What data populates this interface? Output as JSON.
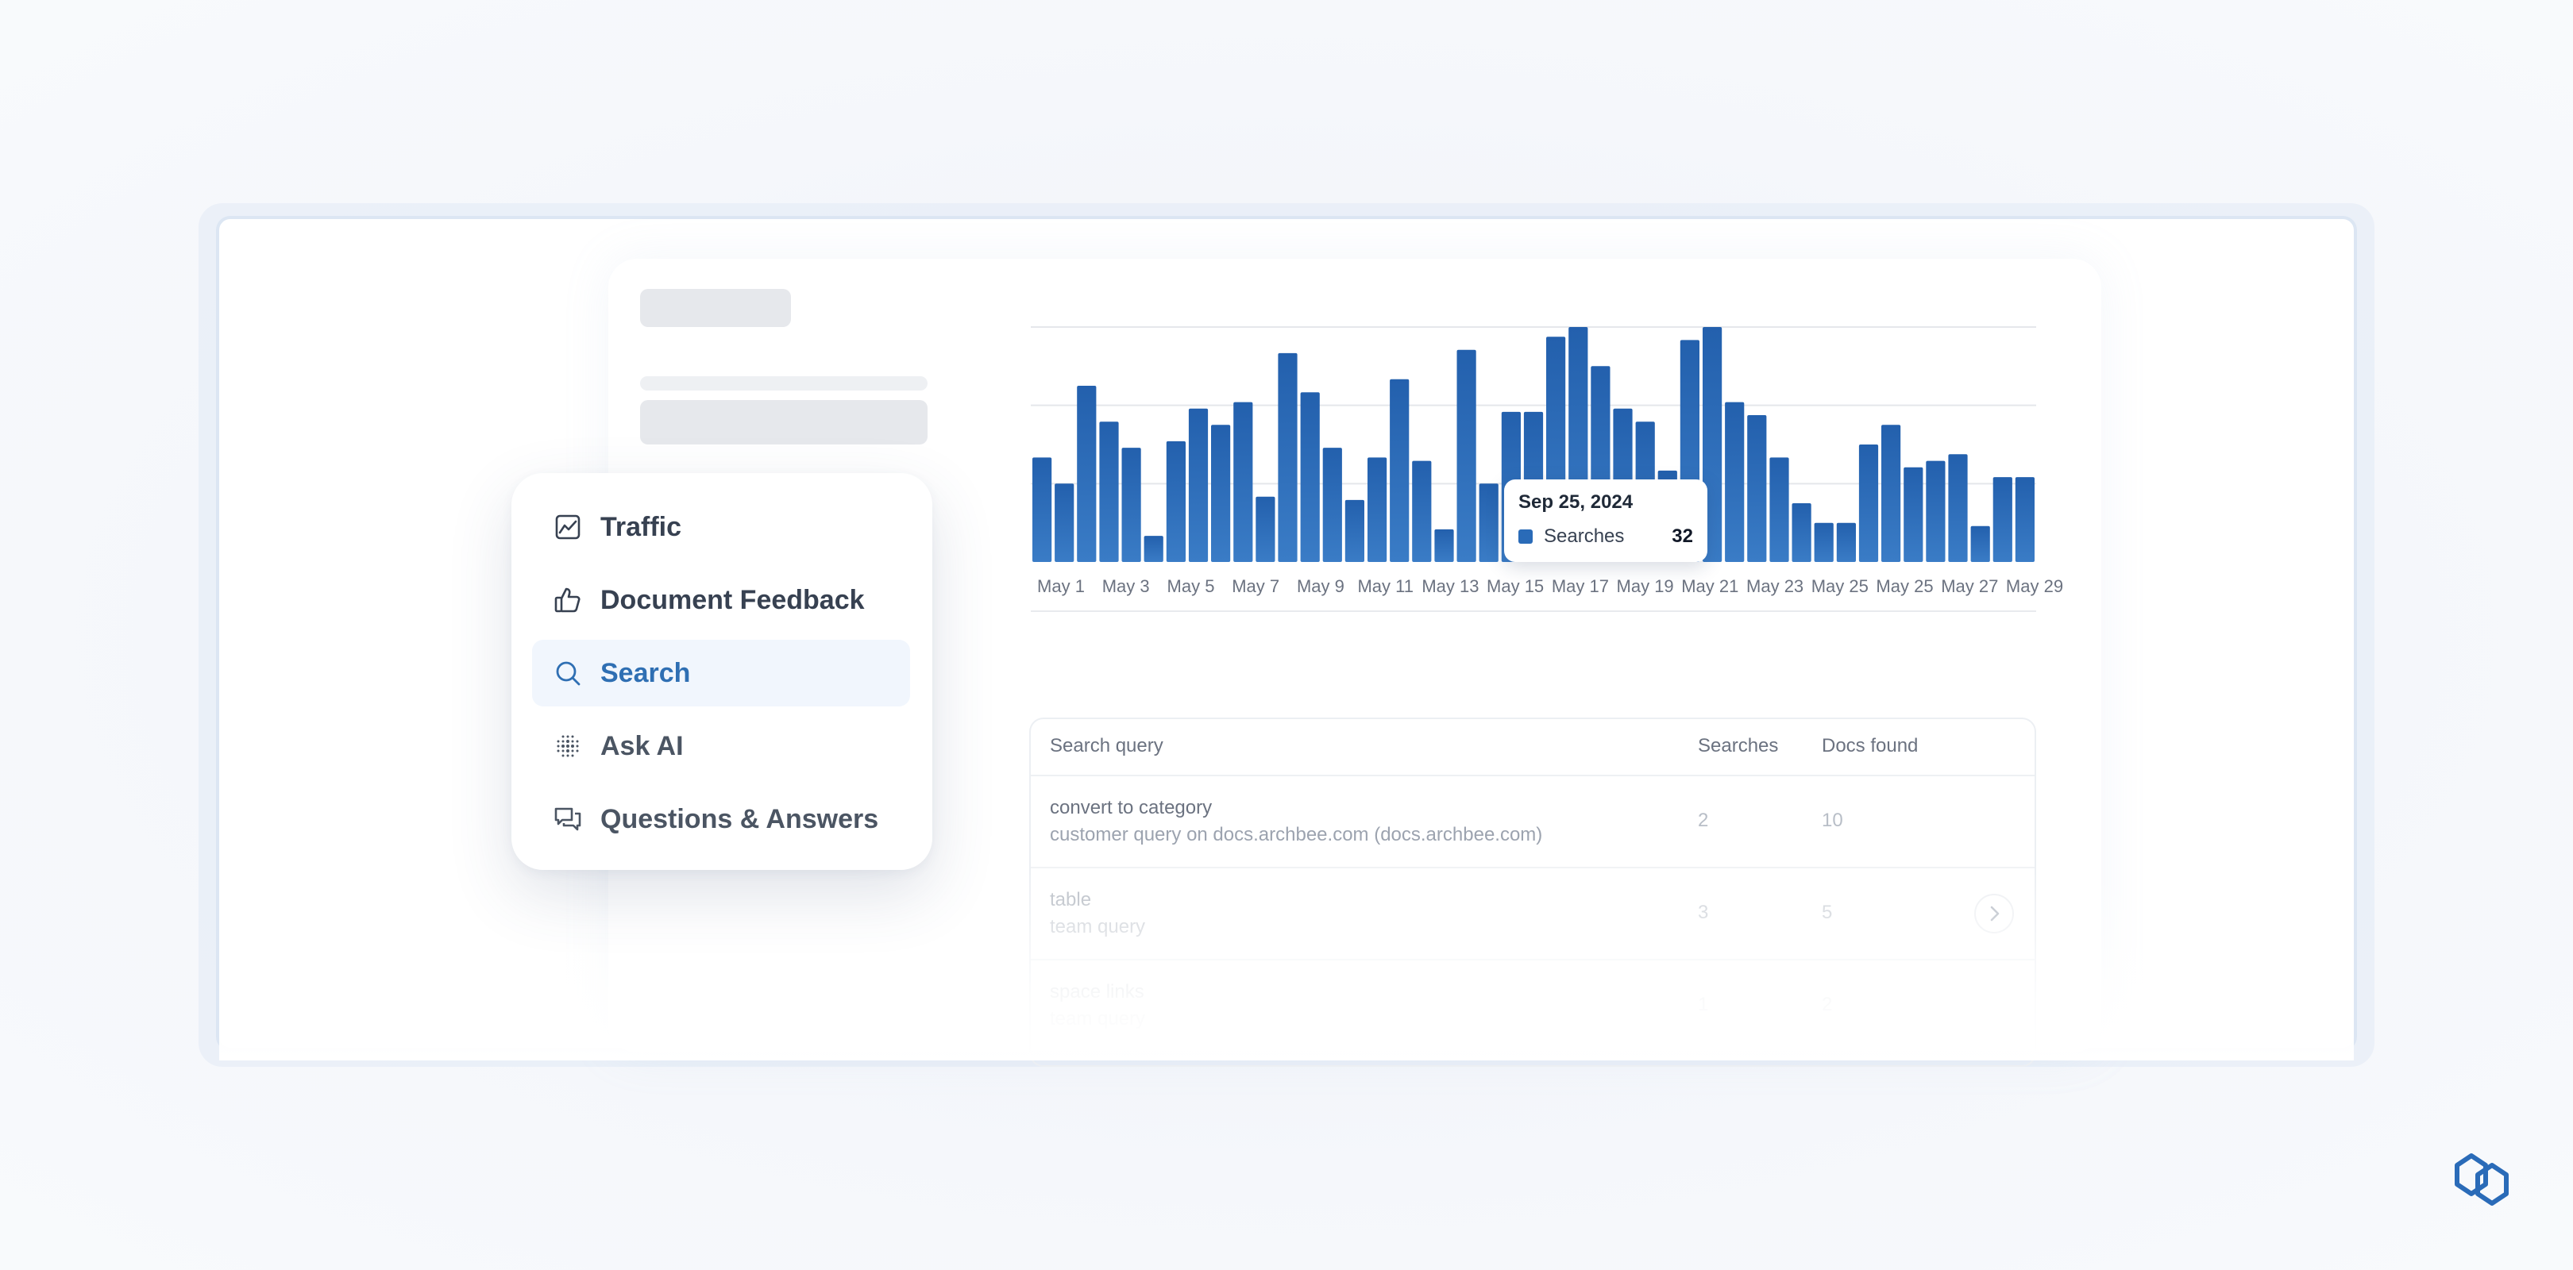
{
  "colors": {
    "accent": "#2a6bb8",
    "bar": "#2a6bb8",
    "active_bg": "#f1f6fd"
  },
  "menu": {
    "items": [
      {
        "label": "Traffic",
        "icon": "chart-line-icon",
        "active": false
      },
      {
        "label": "Document Feedback",
        "icon": "thumbs-up-icon",
        "active": false
      },
      {
        "label": "Search",
        "icon": "search-icon",
        "active": true
      },
      {
        "label": "Ask AI",
        "icon": "ai-dots-icon",
        "active": false
      },
      {
        "label": "Questions & Answers",
        "icon": "chat-bubbles-icon",
        "active": false
      }
    ]
  },
  "tooltip": {
    "date": "Sep 25, 2024",
    "series": "Searches",
    "value": "32"
  },
  "chart_data": {
    "type": "bar",
    "series": [
      {
        "name": "Searches",
        "values": [
          32,
          24,
          54,
          43,
          35,
          8,
          37,
          47,
          42,
          49,
          20,
          64,
          52,
          35,
          19,
          32,
          56,
          31,
          10,
          65,
          24,
          46,
          46,
          69,
          72,
          60,
          47,
          43,
          28,
          68,
          72,
          49,
          45,
          32,
          18,
          12,
          12,
          36,
          42,
          29,
          31,
          33,
          11,
          26,
          26
        ]
      }
    ],
    "x_tick_labels": [
      "May 1",
      "May 3",
      "May 5",
      "May 7",
      "May 9",
      "May 11",
      "May 13",
      "May 15",
      "May 17",
      "May 19",
      "May 21",
      "May 23",
      "May 25",
      "May 25",
      "May 27",
      "May 29"
    ],
    "ylim": [
      0,
      72
    ],
    "grid": true
  },
  "table": {
    "headers": {
      "query": "Search query",
      "searches": "Searches",
      "docs": "Docs found"
    },
    "rows": [
      {
        "title": "convert to category",
        "sub": "customer query on docs.archbee.com (docs.archbee.com)",
        "searches": "2",
        "docs": "10"
      },
      {
        "title": "table",
        "sub": "team query",
        "searches": "3",
        "docs": "5"
      },
      {
        "title": "space links",
        "sub": "team query",
        "searches": "1",
        "docs": "2"
      }
    ]
  }
}
